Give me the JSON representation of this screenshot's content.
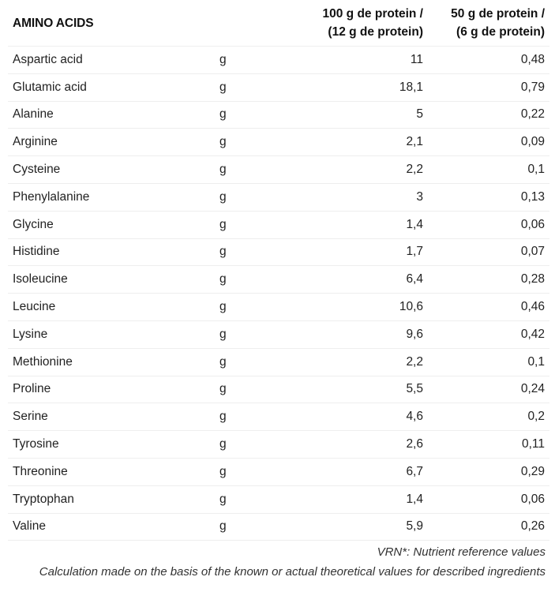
{
  "table": {
    "headers": {
      "name": "AMINO ACIDS",
      "unit": "",
      "col100_line1": "100 g de protein /",
      "col100_line2": "(12 g de protein)",
      "col50_line1": "50 g de protein /",
      "col50_line2": "(6 g de protein)"
    },
    "rows": [
      {
        "name": "Aspartic acid",
        "unit": "g",
        "per100": "11",
        "per50": "0,48"
      },
      {
        "name": "Glutamic acid",
        "unit": "g",
        "per100": "18,1",
        "per50": "0,79"
      },
      {
        "name": "Alanine",
        "unit": "g",
        "per100": "5",
        "per50": "0,22"
      },
      {
        "name": "Arginine",
        "unit": "g",
        "per100": "2,1",
        "per50": "0,09"
      },
      {
        "name": "Cysteine",
        "unit": "g",
        "per100": "2,2",
        "per50": "0,1"
      },
      {
        "name": "Phenylalanine",
        "unit": "g",
        "per100": "3",
        "per50": "0,13"
      },
      {
        "name": "Glycine",
        "unit": "g",
        "per100": "1,4",
        "per50": "0,06"
      },
      {
        "name": "Histidine",
        "unit": "g",
        "per100": "1,7",
        "per50": "0,07"
      },
      {
        "name": "Isoleucine",
        "unit": "g",
        "per100": "6,4",
        "per50": "0,28"
      },
      {
        "name": "Leucine",
        "unit": "g",
        "per100": "10,6",
        "per50": "0,46"
      },
      {
        "name": "Lysine",
        "unit": "g",
        "per100": "9,6",
        "per50": "0,42"
      },
      {
        "name": "Methionine",
        "unit": "g",
        "per100": "2,2",
        "per50": "0,1"
      },
      {
        "name": "Proline",
        "unit": "g",
        "per100": "5,5",
        "per50": "0,24"
      },
      {
        "name": "Serine",
        "unit": "g",
        "per100": "4,6",
        "per50": "0,2"
      },
      {
        "name": "Tyrosine",
        "unit": "g",
        "per100": "2,6",
        "per50": "0,11"
      },
      {
        "name": "Threonine",
        "unit": "g",
        "per100": "6,7",
        "per50": "0,29"
      },
      {
        "name": "Tryptophan",
        "unit": "g",
        "per100": "1,4",
        "per50": "0,06"
      },
      {
        "name": "Valine",
        "unit": "g",
        "per100": "5,9",
        "per50": "0,26"
      }
    ]
  },
  "footnote": {
    "line1": "VRN*: Nutrient reference values",
    "line2": "Calculation made on the basis of the known or actual theoretical values for described ingredients"
  }
}
